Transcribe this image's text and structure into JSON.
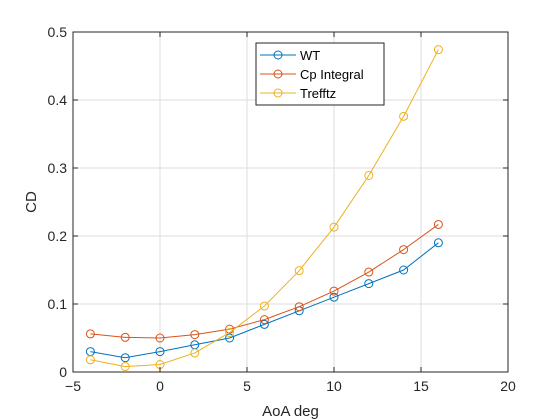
{
  "chart_data": {
    "type": "line",
    "title": "",
    "xlabel": "AoA deg",
    "ylabel": "CD",
    "xlim": [
      -5,
      20
    ],
    "ylim": [
      0,
      0.5
    ],
    "xticks": [
      "−5",
      "0",
      "5",
      "10",
      "15",
      "20"
    ],
    "yticks": [
      "0",
      "0.1",
      "0.2",
      "0.3",
      "0.4",
      "0.5"
    ],
    "grid": true,
    "legend_position": "top-right (inside)",
    "x": [
      -4,
      -2,
      0,
      2,
      4,
      6,
      8,
      10,
      12,
      14,
      16
    ],
    "series": [
      {
        "name": "WT",
        "color": "#0072BD",
        "marker": "circle-open",
        "values": [
          0.03,
          0.021,
          0.03,
          0.04,
          0.05,
          0.07,
          0.09,
          0.11,
          0.13,
          0.15,
          0.19
        ]
      },
      {
        "name": "Cp Integral",
        "color": "#D95319",
        "marker": "circle-open",
        "values": [
          0.056,
          0.051,
          0.05,
          0.055,
          0.063,
          0.077,
          0.096,
          0.119,
          0.147,
          0.18,
          0.217
        ]
      },
      {
        "name": "Trefftz",
        "color": "#EDB120",
        "marker": "circle-open",
        "values": [
          0.018,
          0.008,
          0.011,
          0.028,
          0.058,
          0.097,
          0.149,
          0.213,
          0.289,
          0.376,
          0.474
        ]
      }
    ]
  }
}
